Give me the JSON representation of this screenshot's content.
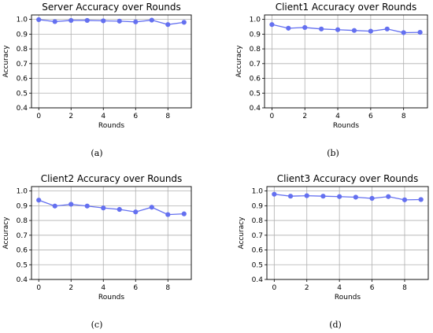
{
  "colors": {
    "series": "#6470f0",
    "grid": "#b0b0b0",
    "axis": "#000000"
  },
  "chart_data": [
    {
      "type": "line",
      "title": "Server Accuracy over Rounds",
      "xlabel": "Rounds",
      "ylabel": "Accuracy",
      "caption": "(a)",
      "x": [
        0,
        1,
        2,
        3,
        4,
        5,
        6,
        7,
        8,
        9
      ],
      "series": [
        {
          "values": [
            0.998,
            0.985,
            0.993,
            0.993,
            0.99,
            0.988,
            0.983,
            0.995,
            0.965,
            0.98
          ]
        }
      ],
      "xlim": [
        -0.45,
        9.45
      ],
      "ylim": [
        0.4,
        1.03
      ],
      "xticks": [
        0,
        2,
        4,
        6,
        8
      ],
      "yticks": [
        0.4,
        0.5,
        0.6,
        0.7,
        0.8,
        0.9,
        1.0
      ],
      "ytick_labels": [
        "0.4",
        "0.5",
        "0.6",
        "0.7",
        "0.8",
        "0.9",
        "1.0"
      ],
      "grid": true
    },
    {
      "type": "line",
      "title": "Client1 Accuracy over Rounds",
      "xlabel": "Rounds",
      "ylabel": "Accuracy",
      "caption": "(b)",
      "x": [
        0,
        1,
        2,
        3,
        4,
        5,
        6,
        7,
        8,
        9
      ],
      "series": [
        {
          "values": [
            0.965,
            0.94,
            0.945,
            0.935,
            0.93,
            0.925,
            0.92,
            0.935,
            0.91,
            0.912
          ]
        }
      ],
      "xlim": [
        -0.45,
        9.45
      ],
      "ylim": [
        0.4,
        1.03
      ],
      "xticks": [
        0,
        2,
        4,
        6,
        8
      ],
      "yticks": [
        0.4,
        0.5,
        0.6,
        0.7,
        0.8,
        0.9,
        1.0
      ],
      "ytick_labels": [
        "0.4",
        "0.5",
        "0.6",
        "0.7",
        "0.8",
        "0.9",
        "1.0"
      ],
      "grid": true
    },
    {
      "type": "line",
      "title": "Client2 Accuracy over Rounds",
      "xlabel": "Rounds",
      "ylabel": "Accuracy",
      "caption": "(c)",
      "x": [
        0,
        1,
        2,
        3,
        4,
        5,
        6,
        7,
        8,
        9
      ],
      "series": [
        {
          "values": [
            0.938,
            0.898,
            0.91,
            0.898,
            0.885,
            0.875,
            0.858,
            0.89,
            0.84,
            0.845
          ]
        }
      ],
      "xlim": [
        -0.45,
        9.45
      ],
      "ylim": [
        0.4,
        1.03
      ],
      "xticks": [
        0,
        2,
        4,
        6,
        8
      ],
      "yticks": [
        0.4,
        0.5,
        0.6,
        0.7,
        0.8,
        0.9,
        1.0
      ],
      "ytick_labels": [
        "0.4",
        "0.5",
        "0.6",
        "0.7",
        "0.8",
        "0.9",
        "1.0"
      ],
      "grid": true
    },
    {
      "type": "line",
      "title": "Client3 Accuracy over Rounds",
      "xlabel": "Rounds",
      "ylabel": "Accuracy",
      "caption": "(d)",
      "x": [
        0,
        1,
        2,
        3,
        4,
        5,
        6,
        7,
        8,
        9
      ],
      "series": [
        {
          "values": [
            0.978,
            0.965,
            0.968,
            0.965,
            0.962,
            0.958,
            0.95,
            0.962,
            0.94,
            0.942
          ]
        }
      ],
      "xlim": [
        -0.45,
        9.45
      ],
      "ylim": [
        0.4,
        1.03
      ],
      "xticks": [
        0,
        2,
        4,
        6,
        8
      ],
      "yticks": [
        0.4,
        0.5,
        0.6,
        0.7,
        0.8,
        0.9,
        1.0
      ],
      "ytick_labels": [
        "0.4",
        "0.5",
        "0.6",
        "0.7",
        "0.8",
        "0.9",
        "1.0"
      ],
      "grid": true
    }
  ]
}
